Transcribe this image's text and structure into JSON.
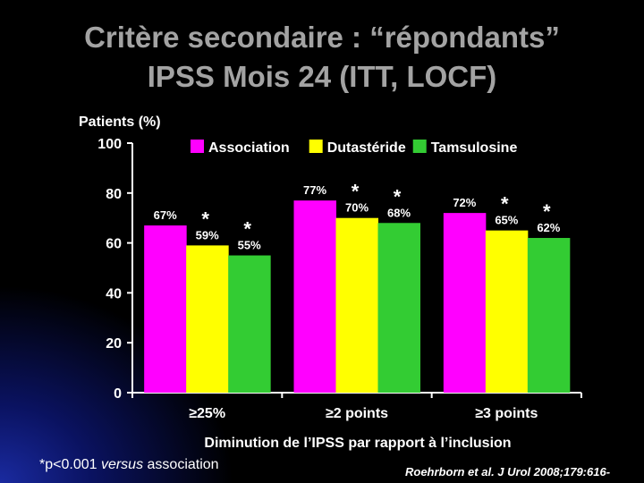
{
  "title_line1": "Critère secondaire : “répondants”",
  "title_line2": "IPSS  Mois 24 (ITT, LOCF)",
  "footnote": {
    "prefix": "*p<0.001 ",
    "italic": "versus",
    "suffix": " association"
  },
  "reference": "Roehrborn et al. J Urol 2008;179:616-",
  "chart_data": {
    "type": "bar",
    "ylabel": "Patients (%)",
    "xlabel": "Diminution de l’IPSS par rapport à l’inclusion",
    "ylim": [
      0,
      100
    ],
    "yticks": [
      "0",
      "20",
      "40",
      "60",
      "80",
      "100"
    ],
    "categories": [
      "≥25%",
      "≥2 points",
      "≥3 points"
    ],
    "legend_position": "top",
    "series": [
      {
        "name": "Association",
        "color": "#ff00ff",
        "values": [
          67,
          77,
          72
        ],
        "labels": [
          "67%",
          "77%",
          "72%"
        ],
        "significant": [
          false,
          false,
          false
        ]
      },
      {
        "name": "Dutastéride",
        "color": "#ffff00",
        "values": [
          59,
          70,
          65
        ],
        "labels": [
          "59%",
          "70%",
          "65%"
        ],
        "significant": [
          true,
          true,
          true
        ]
      },
      {
        "name": "Tamsulosine",
        "color": "#33cc33",
        "values": [
          55,
          68,
          62
        ],
        "labels": [
          "55%",
          "68%",
          "62%"
        ],
        "significant": [
          true,
          true,
          true
        ]
      }
    ],
    "significance_marker": "*"
  }
}
